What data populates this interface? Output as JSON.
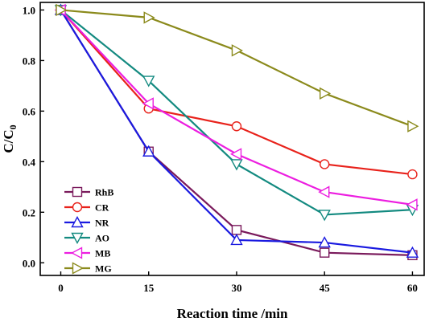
{
  "chart_data": {
    "type": "line",
    "xlabel": "Reaction time /min",
    "ylabel_main": "C/C",
    "ylabel_sub": "0",
    "x": [
      0,
      15,
      30,
      45,
      60
    ],
    "x_ticks": [
      0,
      15,
      30,
      45,
      60
    ],
    "y_ticks": [
      0.0,
      0.2,
      0.4,
      0.6,
      0.8,
      1.0
    ],
    "y_tick_labels": [
      "0.0",
      "0.2",
      "0.4",
      "0.6",
      "0.8",
      "1.0"
    ],
    "xlim": [
      -3.5,
      62
    ],
    "ylim": [
      -0.05,
      1.03
    ],
    "grid": false,
    "legend_position": "bottom-left",
    "series": [
      {
        "name": "RhB",
        "color": "#7a1a5c",
        "marker": "square",
        "values": [
          1.0,
          0.44,
          0.13,
          0.04,
          0.03
        ]
      },
      {
        "name": "CR",
        "color": "#e8221b",
        "marker": "circle",
        "values": [
          1.0,
          0.61,
          0.54,
          0.39,
          0.35
        ]
      },
      {
        "name": "NR",
        "color": "#1a1ae0",
        "marker": "triangle-up",
        "values": [
          1.0,
          0.44,
          0.09,
          0.08,
          0.04
        ]
      },
      {
        "name": "AO",
        "color": "#138a80",
        "marker": "triangle-down",
        "values": [
          1.0,
          0.72,
          0.39,
          0.19,
          0.21
        ]
      },
      {
        "name": "MB",
        "color": "#ec1ee0",
        "marker": "triangle-left",
        "values": [
          1.0,
          0.63,
          0.43,
          0.28,
          0.23
        ]
      },
      {
        "name": "MG",
        "color": "#8b8a1c",
        "marker": "triangle-right",
        "values": [
          1.0,
          0.97,
          0.84,
          0.67,
          0.54
        ]
      }
    ]
  }
}
